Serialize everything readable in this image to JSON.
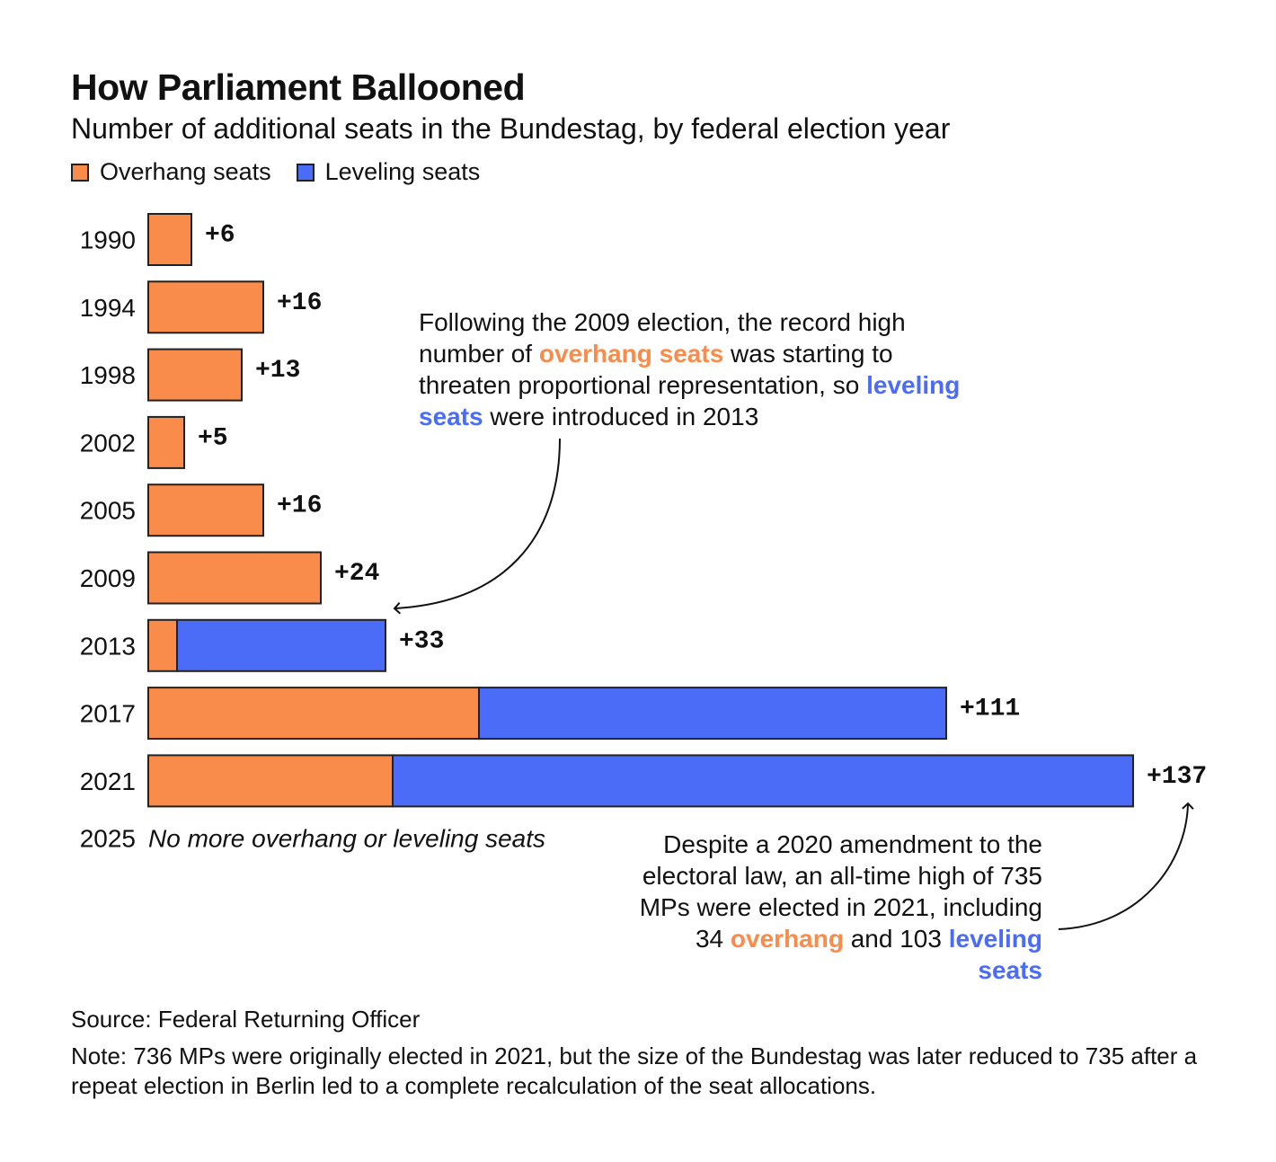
{
  "header": {
    "title": "How Parliament Ballooned",
    "subtitle": "Number of additional seats in the Bundestag, by federal election year"
  },
  "legend": {
    "overhang_label": "Overhang seats",
    "leveling_label": "Leveling seats"
  },
  "colors": {
    "overhang": "#fa8c4b",
    "leveling": "#4a6cf7",
    "stroke": "#222222"
  },
  "chart_data": {
    "type": "bar",
    "orientation": "horizontal",
    "stacked": true,
    "title": "How Parliament Ballooned",
    "subtitle": "Number of additional seats in the Bundestag, by federal election year",
    "categories": [
      "1990",
      "1994",
      "1998",
      "2002",
      "2005",
      "2009",
      "2013",
      "2017",
      "2021"
    ],
    "series": [
      {
        "name": "Overhang seats",
        "values": [
          6,
          16,
          13,
          5,
          16,
          24,
          4,
          46,
          34
        ]
      },
      {
        "name": "Leveling seats",
        "values": [
          0,
          0,
          0,
          0,
          0,
          0,
          29,
          65,
          103
        ]
      }
    ],
    "totals_labels": [
      "+6",
      "+16",
      "+13",
      "+5",
      "+16",
      "+24",
      "+33",
      "+111",
      "+137"
    ],
    "xlim": [
      0,
      137
    ],
    "grid": false,
    "legend_position": "top-left",
    "no_data_row": {
      "year": "2025",
      "text": "No more overhang or leveling seats"
    }
  },
  "annotations": {
    "note1": {
      "p1": "Following the 2009 election, the record high number of ",
      "h1": "overhang seats",
      "p2": " was starting to threaten proportional representation, so ",
      "h2": "leveling seats",
      "p3": " were introduced in 2013"
    },
    "note2": {
      "p1": "Despite a 2020 amendment to the electoral law, an all-time high of 735 MPs were elected in 2021, including 34 ",
      "h1": "overhang",
      "p2": " and 103 ",
      "h2": "leveling seats"
    }
  },
  "footer": {
    "source": "Source: Federal Returning Officer",
    "note": "Note: 736 MPs were originally elected in 2021, but the size of the Bundestag was later reduced to 735 after a repeat election in Berlin led to a complete recalculation of the seat allocations."
  }
}
